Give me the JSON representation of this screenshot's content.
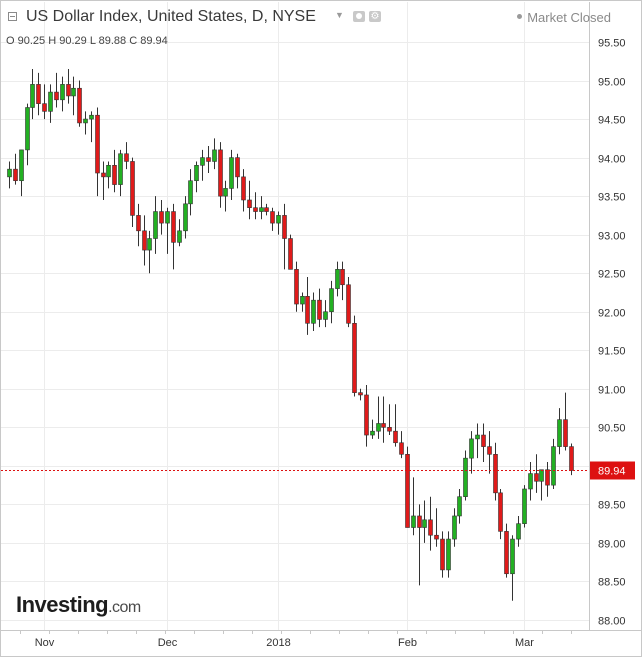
{
  "header": {
    "title": "US Dollar Index, United States, D, NYSE",
    "market_status": "Market Closed"
  },
  "ohlc": {
    "o_label": "O",
    "o": "90.25",
    "h_label": "H",
    "h": "90.29",
    "l_label": "L",
    "l": "89.88",
    "c_label": "C",
    "c": "89.94"
  },
  "watermark": {
    "brand": "Investing",
    "suffix": ".com"
  },
  "colors": {
    "up": "#22b022",
    "down": "#e01a1a",
    "grid": "#ececec",
    "last_price": "#d11"
  },
  "icons": [
    "collapse-icon",
    "caret-down-icon",
    "eye-icon",
    "gear-icon",
    "status-dot-icon"
  ],
  "chart_data": {
    "type": "candlestick",
    "ylim": [
      88.0,
      95.6
    ],
    "y_ticks": [
      "88.00",
      "88.50",
      "89.00",
      "89.50",
      "90.00",
      "90.50",
      "91.00",
      "91.50",
      "92.00",
      "92.50",
      "93.00",
      "93.50",
      "94.00",
      "94.50",
      "95.00",
      "95.50"
    ],
    "x_ticks": [
      {
        "label": "Nov",
        "index": 6
      },
      {
        "label": "Dec",
        "index": 27
      },
      {
        "label": "2018",
        "index": 46
      },
      {
        "label": "Feb",
        "index": 68
      },
      {
        "label": "Mar",
        "index": 88
      }
    ],
    "last_price": "89.94",
    "last_value": 89.94,
    "candles": [
      [
        93.75,
        93.95,
        93.6,
        93.85
      ],
      [
        93.85,
        94.05,
        93.65,
        93.7
      ],
      [
        93.7,
        94.1,
        93.5,
        94.1
      ],
      [
        94.1,
        94.7,
        93.9,
        94.65
      ],
      [
        94.65,
        95.15,
        94.5,
        94.95
      ],
      [
        94.95,
        95.1,
        94.55,
        94.7
      ],
      [
        94.7,
        94.95,
        94.5,
        94.6
      ],
      [
        94.6,
        94.95,
        94.45,
        94.85
      ],
      [
        94.85,
        95.1,
        94.65,
        94.75
      ],
      [
        94.75,
        95.05,
        94.6,
        94.95
      ],
      [
        94.95,
        95.15,
        94.7,
        94.8
      ],
      [
        94.8,
        95.05,
        94.55,
        94.9
      ],
      [
        94.9,
        95.0,
        94.4,
        94.45
      ],
      [
        94.45,
        94.6,
        94.3,
        94.5
      ],
      [
        94.5,
        94.6,
        94.2,
        94.55
      ],
      [
        94.55,
        94.65,
        93.5,
        93.8
      ],
      [
        93.8,
        93.95,
        93.45,
        93.75
      ],
      [
        93.75,
        93.95,
        93.6,
        93.9
      ],
      [
        93.9,
        94.1,
        93.55,
        93.65
      ],
      [
        93.65,
        94.1,
        93.5,
        94.05
      ],
      [
        94.05,
        94.2,
        93.85,
        93.95
      ],
      [
        93.95,
        94.0,
        93.1,
        93.25
      ],
      [
        93.25,
        93.4,
        92.85,
        93.05
      ],
      [
        93.05,
        93.25,
        92.6,
        92.8
      ],
      [
        92.8,
        93.05,
        92.5,
        92.95
      ],
      [
        92.95,
        93.5,
        92.75,
        93.3
      ],
      [
        93.3,
        93.45,
        93.0,
        93.15
      ],
      [
        93.15,
        93.35,
        92.75,
        93.3
      ],
      [
        93.3,
        93.4,
        92.55,
        92.9
      ],
      [
        92.9,
        93.2,
        92.85,
        93.05
      ],
      [
        93.05,
        93.5,
        92.95,
        93.4
      ],
      [
        93.4,
        93.85,
        93.25,
        93.7
      ],
      [
        93.7,
        93.95,
        93.55,
        93.9
      ],
      [
        93.9,
        94.1,
        93.7,
        94.0
      ],
      [
        94.0,
        94.15,
        93.8,
        93.95
      ],
      [
        93.95,
        94.25,
        93.85,
        94.1
      ],
      [
        94.1,
        94.2,
        93.35,
        93.5
      ],
      [
        93.5,
        93.7,
        93.3,
        93.6
      ],
      [
        93.6,
        94.1,
        93.45,
        94.0
      ],
      [
        94.0,
        94.05,
        93.6,
        93.75
      ],
      [
        93.75,
        93.85,
        93.3,
        93.45
      ],
      [
        93.45,
        93.7,
        93.2,
        93.35
      ],
      [
        93.35,
        93.55,
        93.2,
        93.3
      ],
      [
        93.3,
        93.5,
        93.2,
        93.35
      ],
      [
        93.35,
        93.4,
        93.25,
        93.3
      ],
      [
        93.3,
        93.35,
        93.05,
        93.15
      ],
      [
        93.15,
        93.3,
        93.0,
        93.25
      ],
      [
        93.25,
        93.4,
        92.55,
        92.95
      ],
      [
        92.95,
        93.0,
        92.55,
        92.55
      ],
      [
        92.55,
        92.65,
        92.0,
        92.1
      ],
      [
        92.1,
        92.25,
        92.0,
        92.2
      ],
      [
        92.2,
        92.45,
        91.7,
        91.85
      ],
      [
        91.85,
        92.25,
        91.75,
        92.15
      ],
      [
        92.15,
        92.3,
        91.8,
        91.9
      ],
      [
        91.9,
        92.15,
        91.8,
        92.0
      ],
      [
        92.0,
        92.4,
        91.85,
        92.3
      ],
      [
        92.3,
        92.65,
        92.2,
        92.55
      ],
      [
        92.55,
        92.65,
        92.15,
        92.35
      ],
      [
        92.35,
        92.45,
        91.8,
        91.85
      ],
      [
        91.85,
        91.95,
        90.9,
        90.95
      ],
      [
        90.95,
        91.0,
        90.85,
        90.92
      ],
      [
        90.92,
        91.05,
        90.25,
        90.4
      ],
      [
        90.4,
        90.6,
        90.35,
        90.45
      ],
      [
        90.45,
        90.9,
        90.35,
        90.55
      ],
      [
        90.55,
        90.9,
        90.3,
        90.5
      ],
      [
        90.5,
        90.8,
        90.4,
        90.45
      ],
      [
        90.45,
        90.8,
        90.25,
        90.3
      ],
      [
        90.3,
        90.45,
        90.1,
        90.15
      ],
      [
        90.15,
        90.25,
        89.2,
        89.2
      ],
      [
        89.2,
        89.85,
        89.1,
        89.35
      ],
      [
        89.35,
        89.5,
        88.45,
        89.2
      ],
      [
        89.2,
        89.55,
        89.0,
        89.3
      ],
      [
        89.3,
        89.6,
        88.9,
        89.1
      ],
      [
        89.1,
        89.45,
        88.95,
        89.05
      ],
      [
        89.05,
        89.15,
        88.55,
        88.65
      ],
      [
        88.65,
        89.15,
        88.55,
        89.05
      ],
      [
        89.05,
        89.45,
        88.95,
        89.35
      ],
      [
        89.35,
        89.7,
        89.25,
        89.6
      ],
      [
        89.6,
        90.2,
        89.55,
        90.1
      ],
      [
        90.1,
        90.45,
        89.9,
        90.35
      ],
      [
        90.35,
        90.55,
        90.1,
        90.4
      ],
      [
        90.4,
        90.55,
        90.05,
        90.25
      ],
      [
        90.25,
        90.45,
        89.9,
        90.15
      ],
      [
        90.15,
        90.3,
        89.55,
        89.65
      ],
      [
        89.65,
        89.7,
        89.05,
        89.15
      ],
      [
        89.15,
        89.25,
        88.55,
        88.6
      ],
      [
        88.6,
        89.1,
        88.25,
        89.05
      ],
      [
        89.05,
        89.35,
        88.95,
        89.25
      ],
      [
        89.25,
        89.75,
        89.2,
        89.7
      ],
      [
        89.7,
        90.05,
        89.55,
        89.9
      ],
      [
        89.9,
        90.15,
        89.65,
        89.8
      ],
      [
        89.8,
        89.95,
        89.55,
        89.95
      ],
      [
        89.95,
        90.05,
        89.6,
        89.75
      ],
      [
        89.75,
        90.35,
        89.7,
        90.25
      ],
      [
        90.25,
        90.75,
        90.15,
        90.6
      ],
      [
        90.6,
        90.95,
        90.2,
        90.25
      ],
      [
        90.25,
        90.29,
        89.88,
        89.94
      ]
    ]
  }
}
